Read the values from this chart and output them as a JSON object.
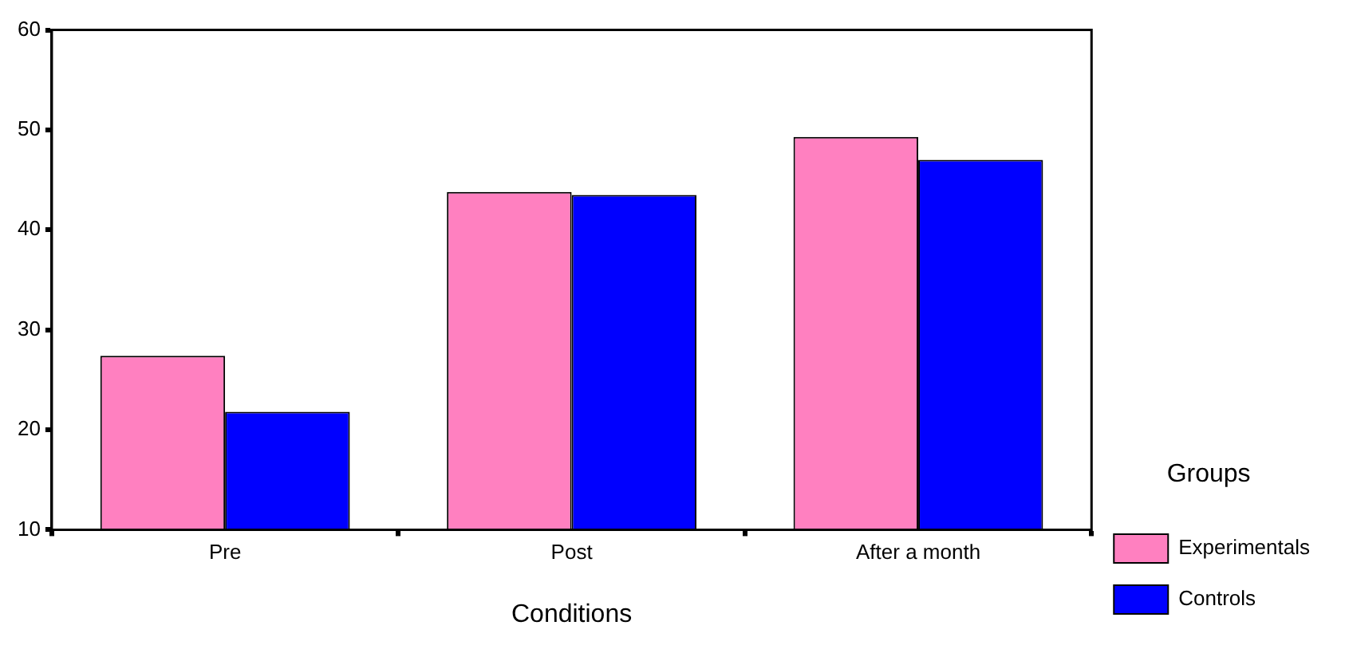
{
  "chart_data": {
    "type": "bar",
    "xlabel": "Conditions",
    "legend_title": "Groups",
    "categories": [
      "Pre",
      "Post",
      "After a month"
    ],
    "series": [
      {
        "name": "Experimentals",
        "color": "#ff80c0",
        "values": [
          27.4,
          43.8,
          49.3
        ]
      },
      {
        "name": "Controls",
        "color": "#0000ff",
        "values": [
          21.8,
          43.5,
          47.0
        ]
      }
    ],
    "ylim": [
      10,
      60
    ],
    "yticks": [
      10,
      20,
      30,
      40,
      50,
      60
    ],
    "grid": false,
    "legend": "right"
  }
}
